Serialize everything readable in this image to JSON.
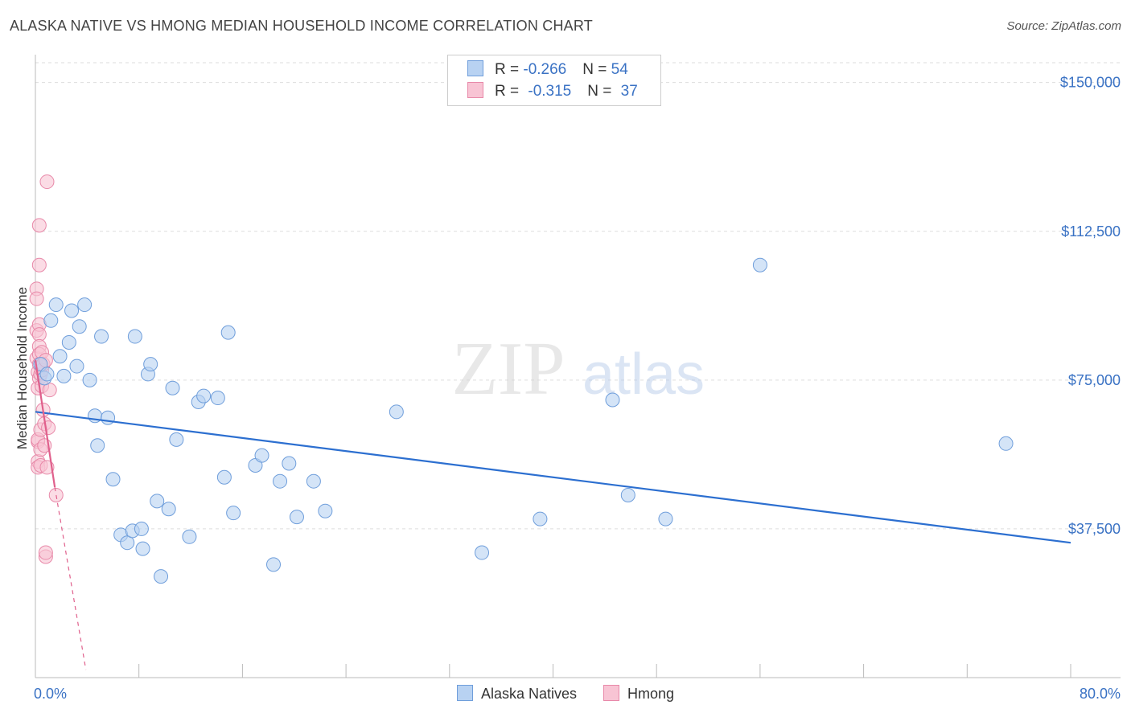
{
  "title": "ALASKA NATIVE VS HMONG MEDIAN HOUSEHOLD INCOME CORRELATION CHART",
  "source": "Source: ZipAtlas.com",
  "watermark": {
    "zip": "ZIP",
    "atlas": "atlas"
  },
  "legend_top": [
    {
      "r_label": "R = ",
      "r_value": "-0.266",
      "n_label": "N = ",
      "n_value": "54"
    },
    {
      "r_label": "R = ",
      "r_value": "-0.315",
      "n_label": "N = ",
      "n_value": "37"
    }
  ],
  "colors": {
    "blue_fill": "#b8d2f2",
    "blue_stroke": "#6f9edb",
    "blue_line": "#2c6fd0",
    "pink_fill": "#f8c4d4",
    "pink_stroke": "#e889a9",
    "pink_line": "#e0608c",
    "tick_text": "#3a72c4",
    "grid": "#dddddd"
  },
  "chart_data": {
    "type": "scatter",
    "title": "ALASKA NATIVE VS HMONG MEDIAN HOUSEHOLD INCOME CORRELATION CHART",
    "xlabel": "",
    "ylabel": "Median Household Income",
    "xlim": [
      0,
      80
    ],
    "ylim": [
      0,
      155000
    ],
    "x_tick_labels": [
      "0.0%",
      "80.0%"
    ],
    "y_ticks": [
      37500,
      75000,
      112500,
      150000
    ],
    "y_tick_labels": [
      "$37,500",
      "$75,000",
      "$112,500",
      "$150,000"
    ],
    "grid": true,
    "legend": "bottom",
    "series": [
      {
        "name": "Alaska Natives",
        "r": -0.266,
        "n": 54,
        "trend": {
          "x0": 0.0,
          "y0": 67000,
          "x1": 80.0,
          "y1": 34000
        },
        "points": [
          [
            0.4,
            79000
          ],
          [
            0.7,
            75500
          ],
          [
            0.9,
            76500
          ],
          [
            1.2,
            90000
          ],
          [
            1.6,
            94000
          ],
          [
            1.9,
            81000
          ],
          [
            2.2,
            76000
          ],
          [
            2.6,
            84500
          ],
          [
            2.8,
            92500
          ],
          [
            3.2,
            78500
          ],
          [
            3.4,
            88500
          ],
          [
            3.8,
            94000
          ],
          [
            4.2,
            75000
          ],
          [
            4.6,
            66000
          ],
          [
            4.8,
            58500
          ],
          [
            5.1,
            86000
          ],
          [
            5.6,
            65500
          ],
          [
            6.0,
            50000
          ],
          [
            6.6,
            36000
          ],
          [
            7.1,
            34000
          ],
          [
            7.5,
            37000
          ],
          [
            7.7,
            86000
          ],
          [
            8.2,
            37500
          ],
          [
            8.3,
            32500
          ],
          [
            8.7,
            76500
          ],
          [
            8.9,
            79000
          ],
          [
            9.4,
            44500
          ],
          [
            9.7,
            25500
          ],
          [
            10.3,
            42500
          ],
          [
            10.6,
            73000
          ],
          [
            10.9,
            60000
          ],
          [
            11.9,
            35500
          ],
          [
            12.6,
            69500
          ],
          [
            13.0,
            71000
          ],
          [
            14.1,
            70500
          ],
          [
            14.6,
            50500
          ],
          [
            14.9,
            87000
          ],
          [
            15.3,
            41500
          ],
          [
            17.0,
            53500
          ],
          [
            17.5,
            56000
          ],
          [
            18.4,
            28500
          ],
          [
            18.9,
            49500
          ],
          [
            19.6,
            54000
          ],
          [
            20.2,
            40500
          ],
          [
            21.5,
            49500
          ],
          [
            22.4,
            42000
          ],
          [
            27.9,
            67000
          ],
          [
            34.5,
            31500
          ],
          [
            39.0,
            40000
          ],
          [
            44.6,
            70000
          ],
          [
            45.8,
            46000
          ],
          [
            48.7,
            40000
          ],
          [
            56.0,
            104000
          ],
          [
            75.0,
            59000
          ]
        ]
      },
      {
        "name": "Hmong",
        "r": -0.315,
        "n": 37,
        "trend": {
          "x0": 0.0,
          "y0": 80000,
          "x1": 1.5,
          "y1": 48000
        },
        "trend_dashed": {
          "x0": 1.5,
          "y0": 48000,
          "x1": 3.9,
          "y1": 2000
        },
        "points": [
          [
            0.1,
            98000
          ],
          [
            0.1,
            95500
          ],
          [
            0.1,
            87500
          ],
          [
            0.1,
            80500
          ],
          [
            0.2,
            77000
          ],
          [
            0.2,
            73000
          ],
          [
            0.2,
            59500
          ],
          [
            0.2,
            54500
          ],
          [
            0.2,
            53000
          ],
          [
            0.2,
            60000
          ],
          [
            0.3,
            114000
          ],
          [
            0.3,
            104000
          ],
          [
            0.3,
            89000
          ],
          [
            0.3,
            86500
          ],
          [
            0.3,
            83500
          ],
          [
            0.3,
            81500
          ],
          [
            0.3,
            79000
          ],
          [
            0.3,
            75500
          ],
          [
            0.4,
            76500
          ],
          [
            0.4,
            62500
          ],
          [
            0.4,
            57500
          ],
          [
            0.4,
            53500
          ],
          [
            0.5,
            82000
          ],
          [
            0.5,
            77500
          ],
          [
            0.5,
            73500
          ],
          [
            0.6,
            79000
          ],
          [
            0.6,
            67500
          ],
          [
            0.7,
            64000
          ],
          [
            0.7,
            58500
          ],
          [
            0.8,
            80000
          ],
          [
            0.8,
            30500
          ],
          [
            0.8,
            31500
          ],
          [
            0.9,
            125000
          ],
          [
            0.9,
            53000
          ],
          [
            1.0,
            63000
          ],
          [
            1.1,
            72500
          ],
          [
            1.6,
            46000
          ]
        ]
      }
    ]
  }
}
